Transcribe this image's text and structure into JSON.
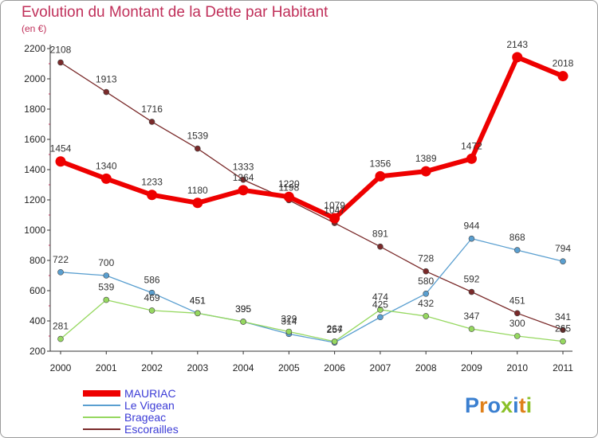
{
  "title": "Evolution du Montant de la Dette par Habitant",
  "subtitle": "(en €)",
  "brand": "Proxiti",
  "chart_data": {
    "type": "line",
    "x": [
      "2000",
      "2001",
      "2002",
      "2003",
      "2004",
      "2005",
      "2006",
      "2007",
      "2008",
      "2009",
      "2010",
      "2011"
    ],
    "ylim": [
      200,
      2200
    ],
    "yticks": [
      200,
      400,
      600,
      800,
      1000,
      1200,
      1400,
      1600,
      1800,
      2000,
      2200
    ],
    "grid": false,
    "legend_position": "bottom-left",
    "series": [
      {
        "name": "Escorailles",
        "color": "#7a2a2a",
        "width": 1.3,
        "marker": 3.5,
        "values": [
          2108,
          1913,
          1716,
          1539,
          1333,
          1198,
          1047,
          891,
          728,
          592,
          451,
          341
        ]
      },
      {
        "name": "Le Vigean",
        "color": "#5a9fd0",
        "width": 1.3,
        "marker": 3.5,
        "values": [
          722,
          700,
          586,
          451,
          395,
          314,
          257,
          425,
          580,
          944,
          868,
          794
        ]
      },
      {
        "name": "Brageac",
        "color": "#96d860",
        "width": 1.3,
        "marker": 3.5,
        "values": [
          281,
          539,
          469,
          451,
          395,
          329,
          264,
          474,
          432,
          347,
          300,
          265
        ]
      },
      {
        "name": "MAURIAC",
        "color": "#ee0000",
        "width": 6,
        "marker": 6.5,
        "values": [
          1454,
          1340,
          1233,
          1180,
          1264,
          1220,
          1079,
          1356,
          1389,
          1472,
          2143,
          2018
        ]
      }
    ],
    "legend": [
      "MAURIAC",
      "Le Vigean",
      "Brageac",
      "Escorailles"
    ]
  }
}
